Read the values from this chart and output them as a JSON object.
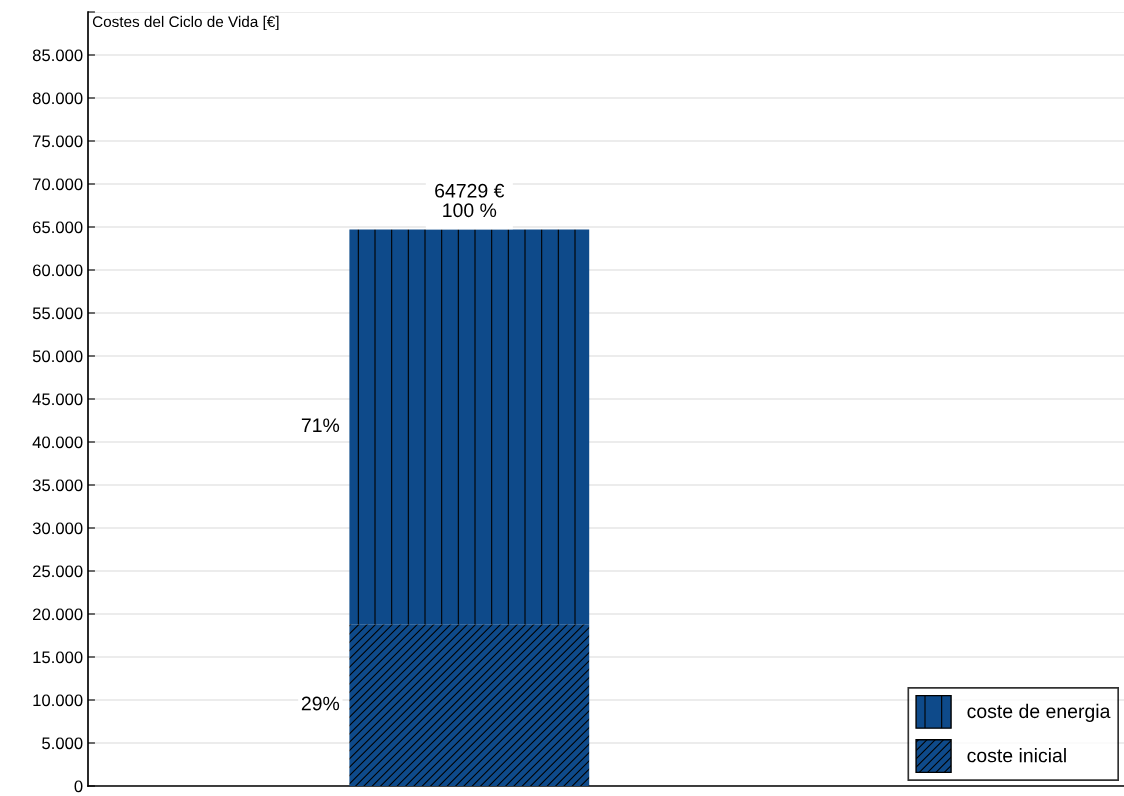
{
  "chart_data": {
    "type": "bar",
    "stacked": true,
    "ylabel": "Costes del Ciclo de Vida [€]",
    "categories": [
      null
    ],
    "series": [
      {
        "name": "coste inicial",
        "color": "#0e4a8a",
        "values": [
          18800
        ]
      },
      {
        "name": "coste de energia",
        "color": "#0e4a8a",
        "values": [
          45900
        ]
      }
    ],
    "annotations": [
      "29%",
      "71%"
    ],
    "totals": [
      "64729 €\n100 %"
    ],
    "ylim": [
      0,
      90000
    ],
    "yticks": [
      {
        "value": 0,
        "label": "0"
      },
      {
        "value": 5000,
        "label": "5.000"
      },
      {
        "value": 10000,
        "label": "10.000"
      },
      {
        "value": 15000,
        "label": "15.000"
      },
      {
        "value": 20000,
        "label": "20.000"
      },
      {
        "value": 25000,
        "label": "25.000"
      },
      {
        "value": 30000,
        "label": "30.000"
      },
      {
        "value": 35000,
        "label": "35.000"
      },
      {
        "value": 40000,
        "label": "40.000"
      },
      {
        "value": 45000,
        "label": "45.000"
      },
      {
        "value": 50000,
        "label": "50.000"
      },
      {
        "value": 55000,
        "label": "55.000"
      },
      {
        "value": 60000,
        "label": "60.000"
      },
      {
        "value": 65000,
        "label": "65.000"
      },
      {
        "value": 70000,
        "label": "70.000"
      },
      {
        "value": 75000,
        "label": "75.000"
      },
      {
        "value": 80000,
        "label": "80.000"
      },
      {
        "value": 85000,
        "label": "85.000"
      },
      {
        "value": 90000,
        "label": null
      }
    ],
    "grid": "y",
    "legend": "bottom right",
    "tick_labels": "y"
  }
}
